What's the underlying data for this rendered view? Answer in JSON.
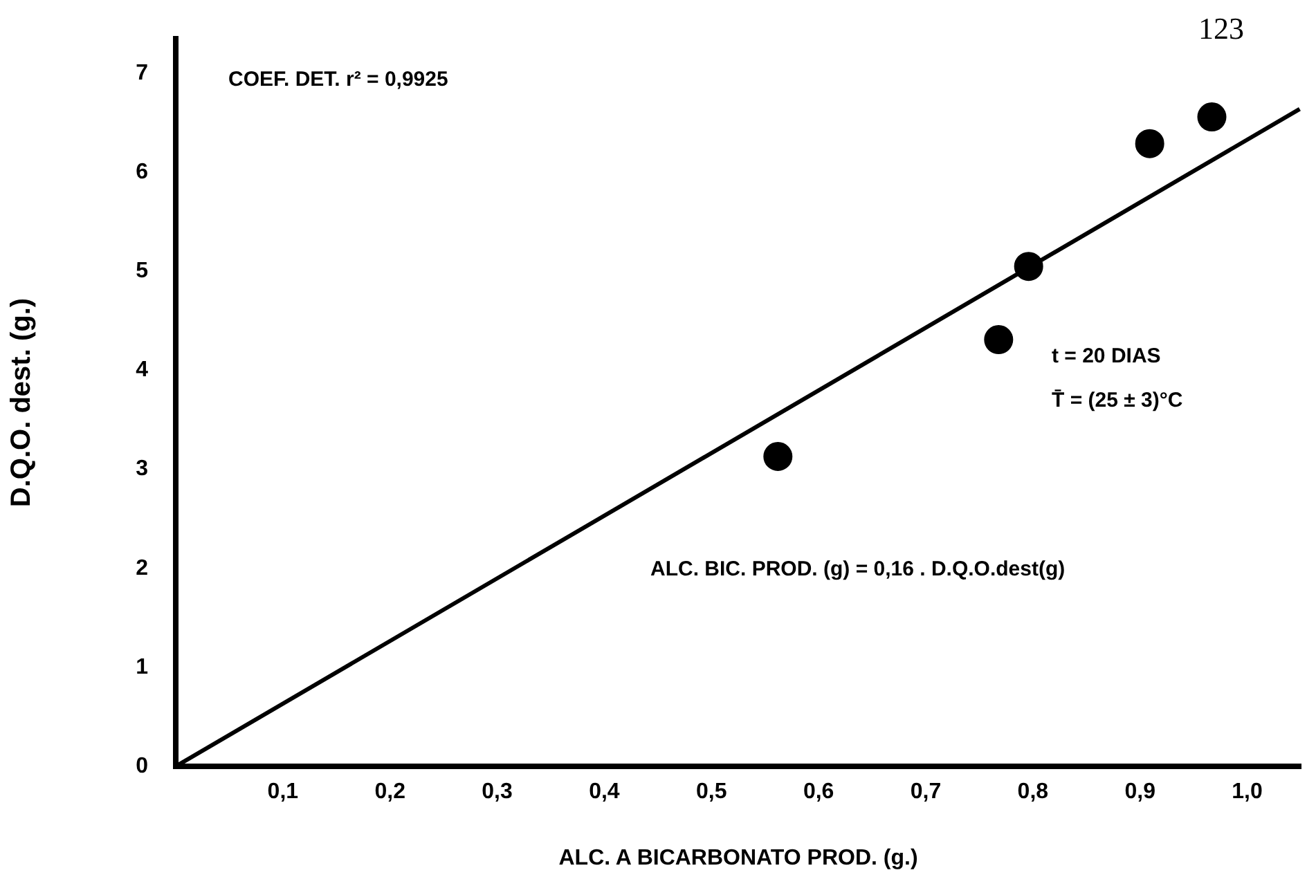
{
  "chart_data": {
    "type": "scatter",
    "xlabel": "ALC. A BICARBONATO PROD. (g.)",
    "ylabel": "D.Q.O. dest. (g.)",
    "annotations": [
      "123",
      "COEF. DET. r² = 0,9925",
      "t = 20 DIAS",
      "T̄ = (25 ± 3)°C",
      "ALC. BIC. PROD. (g) = 0,16 . D.Q.O.dest(g)"
    ],
    "series": [
      {
        "color": "#000000",
        "marker": "circle",
        "x": [
          0.562,
          0.768,
          0.796,
          0.909,
          0.967
        ],
        "values": [
          3.13,
          4.31,
          5.05,
          6.29,
          6.56
        ]
      },
      {
        "type": "line",
        "color": "#000000",
        "marker": "none",
        "x": [
          0,
          1.049
        ],
        "values": [
          0,
          6.64
        ]
      }
    ],
    "xlim": [
      0,
      1.05
    ],
    "ylim": [
      0,
      7.35
    ],
    "xticks": [
      {
        "value": 0.1,
        "label": "0,1"
      },
      {
        "value": 0.2,
        "label": "0,2"
      },
      {
        "value": 0.3,
        "label": "0,3"
      },
      {
        "value": 0.4,
        "label": "0,4"
      },
      {
        "value": 0.5,
        "label": "0,5"
      },
      {
        "value": 0.6,
        "label": "0,6"
      },
      {
        "value": 0.7,
        "label": "0,7"
      },
      {
        "value": 0.8,
        "label": "0,8"
      },
      {
        "value": 0.9,
        "label": "0,9"
      },
      {
        "value": 1.0,
        "label": "1,0"
      }
    ],
    "yticks": [
      0,
      1,
      2,
      3,
      4,
      5,
      6,
      7
    ],
    "grid": false,
    "legend": false
  }
}
